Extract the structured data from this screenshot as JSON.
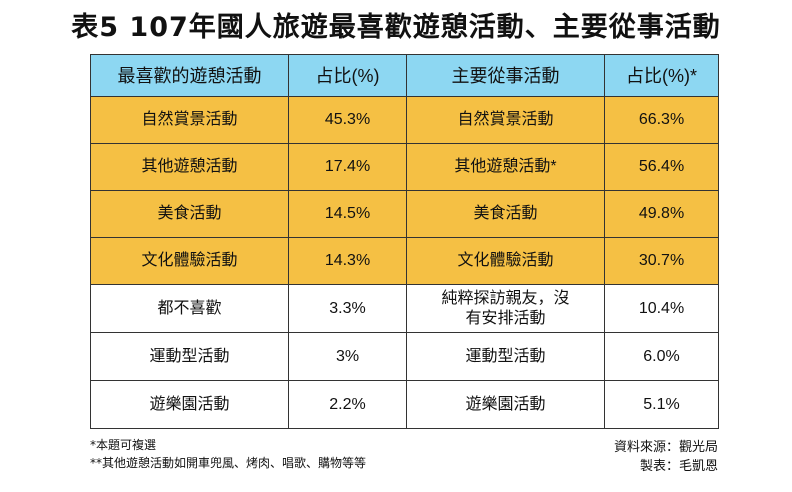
{
  "title": "表5 107年國人旅遊最喜歡遊憩活動、主要從事活動",
  "table": {
    "headers": [
      "最喜歡的遊憩活動",
      "占比(%)",
      "主要從事活動",
      "占比(%)*"
    ],
    "rows": [
      [
        "自然賞景活動",
        "45.3%",
        "自然賞景活動",
        "66.3%"
      ],
      [
        "其他遊憩活動",
        "17.4%",
        "其他遊憩活動*",
        "56.4%"
      ],
      [
        "美食活動",
        "14.5%",
        "美食活動",
        "49.8%"
      ],
      [
        "文化體驗活動",
        "14.3%",
        "文化體驗活動",
        "30.7%"
      ],
      [
        "都不喜歡",
        "3.3%",
        "純粹探訪親友，沒有安排活動",
        "10.4%"
      ],
      [
        "運動型活動",
        "3%",
        "運動型活動",
        "6.0%"
      ],
      [
        "遊樂園活動",
        "2.2%",
        "遊樂園活動",
        "5.1%"
      ]
    ]
  },
  "colors": {
    "header_bg": "#8dd7f2",
    "highlight_bg": "#f5c044",
    "plain_bg": "#ffffff",
    "border": "#333333"
  },
  "notes": {
    "note1": "*本題可複選",
    "note2": "**其他遊憩活動如開車兜風、烤肉、唱歌、購物等等"
  },
  "source": {
    "data_source": "資料來源：觀光局",
    "made_by": "製表：毛凱恩"
  }
}
